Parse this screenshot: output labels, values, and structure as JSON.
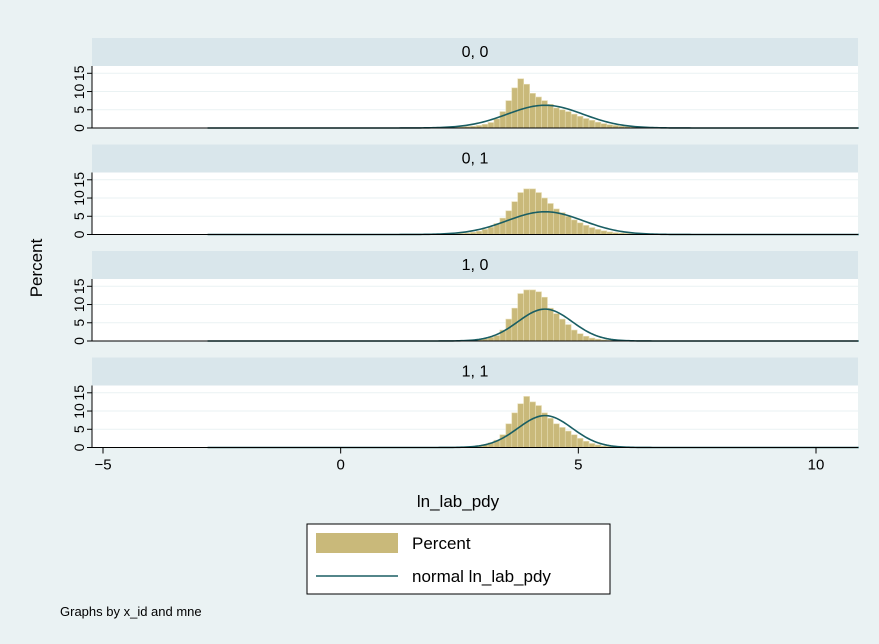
{
  "chart_data": {
    "type": "histogram",
    "xlabel": "ln_lab_pdy",
    "ylabel": "Percent",
    "x_ticks": [
      -5,
      0,
      5,
      10
    ],
    "y_ticks": [
      0,
      5,
      10,
      15
    ],
    "y_tick_labels": [
      "0",
      "5",
      "10",
      "15"
    ],
    "xlim": [
      -5.2,
      11
    ],
    "ylim": [
      0,
      17
    ],
    "grid": true,
    "legend_position": "bottom",
    "legend": [
      {
        "label": "Percent",
        "kind": "bar"
      },
      {
        "label": "normal ln_lab_pdy",
        "kind": "line"
      }
    ],
    "note": "Graphs by x_id and mne",
    "colors": {
      "bar": "#c9b97a",
      "curve": "#1a5e63",
      "strip": "#d9e6eb",
      "background": "#eaf2f3"
    },
    "bin_start": 2.1,
    "bin_width": 0.125,
    "curve_range": [
      -2.8,
      10.9
    ],
    "panels": [
      {
        "title": "0, 0",
        "normal": {
          "mean": 4.3,
          "sd": 0.8
        },
        "values": [
          0.1,
          0.1,
          0.2,
          0.3,
          0.4,
          0.5,
          0.7,
          1.0,
          1.5,
          2.5,
          4.5,
          7.5,
          11.0,
          13.5,
          12.0,
          9.5,
          8.5,
          7.5,
          6.5,
          5.5,
          5.0,
          4.5,
          3.8,
          3.2,
          2.6,
          2.1,
          1.6,
          1.2,
          0.9,
          0.7,
          0.5,
          0.4,
          0.3,
          0.2,
          0.2,
          0.1
        ]
      },
      {
        "title": "0, 1",
        "normal": {
          "mean": 4.3,
          "sd": 0.8
        },
        "values": [
          0.1,
          0.1,
          0.2,
          0.3,
          0.4,
          0.6,
          0.9,
          1.4,
          2.0,
          3.0,
          4.5,
          6.5,
          9.0,
          11.5,
          12.5,
          12.5,
          11.5,
          10.0,
          8.5,
          7.0,
          6.0,
          5.0,
          4.0,
          3.2,
          2.5,
          1.9,
          1.4,
          1.0,
          0.7,
          0.5,
          0.4,
          0.3,
          0.2,
          0.1,
          0.1,
          0.1
        ]
      },
      {
        "title": "1, 0",
        "normal": {
          "mean": 4.3,
          "sd": 0.57
        },
        "values": [
          0.0,
          0.0,
          0.1,
          0.1,
          0.2,
          0.3,
          0.4,
          0.6,
          1.0,
          1.5,
          3.0,
          6.0,
          9.0,
          13.0,
          14.0,
          14.0,
          13.5,
          12.0,
          9.0,
          7.5,
          6.0,
          4.5,
          3.0,
          2.0,
          1.3,
          0.8,
          0.5,
          0.3,
          0.2,
          0.1,
          0.1,
          0.0,
          0.0,
          0.0,
          0.0,
          0.0
        ]
      },
      {
        "title": "1, 1",
        "normal": {
          "mean": 4.3,
          "sd": 0.57
        },
        "values": [
          0.0,
          0.0,
          0.1,
          0.1,
          0.2,
          0.3,
          0.5,
          0.8,
          1.3,
          2.0,
          3.5,
          6.5,
          9.5,
          12.0,
          14.0,
          12.5,
          11.5,
          9.5,
          8.0,
          6.5,
          5.5,
          4.5,
          3.5,
          2.5,
          1.7,
          1.1,
          0.7,
          0.4,
          0.3,
          0.2,
          0.1,
          0.1,
          0.0,
          0.0,
          0.0,
          0.0
        ]
      }
    ]
  }
}
